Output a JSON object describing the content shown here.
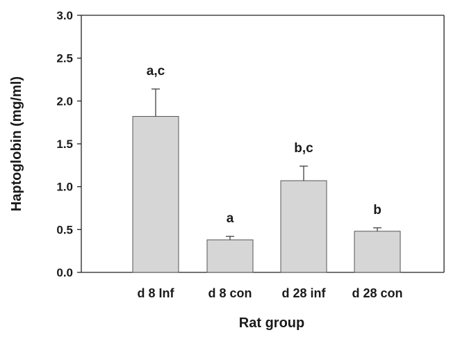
{
  "chart_data": {
    "type": "bar",
    "title": "",
    "xlabel": "Rat group",
    "ylabel": "Haptoglobin (mg/ml)",
    "ylim": [
      0,
      3.0
    ],
    "y_ticks": [
      "0.0",
      "0.5",
      "1.0",
      "1.5",
      "2.0",
      "2.5",
      "3.0"
    ],
    "categories": [
      "d 8 Inf",
      "d 8 con",
      "d 28 inf",
      "d 28 con"
    ],
    "values": [
      1.82,
      0.38,
      1.07,
      0.48
    ],
    "errors": [
      0.32,
      0.04,
      0.17,
      0.04
    ],
    "annotations": [
      "a,c",
      "a",
      "b,c",
      "b"
    ],
    "grid": false,
    "bar_color": "#d6d6d6",
    "bar_edge_color": "#555555"
  }
}
